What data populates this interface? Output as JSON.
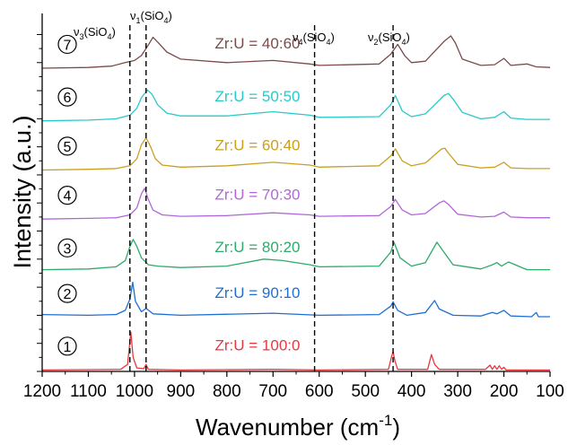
{
  "chart_data": {
    "type": "line",
    "title": "",
    "xlabel": "Wavenumber (cm-1)",
    "xlabel_main": "Wavenumber (cm",
    "xlabel_sup": "-1",
    "xlabel_close": ")",
    "ylabel": "Intensity (a.u.)",
    "xlim": [
      1200,
      100
    ],
    "x_reversed": true,
    "xticks": [
      1200,
      1100,
      1000,
      900,
      800,
      700,
      600,
      500,
      400,
      300,
      200,
      100
    ],
    "y_ticks_labeled": false,
    "grid": false,
    "legend": "none",
    "reference_lines": [
      {
        "x": 1010,
        "label_base": "ν",
        "label_sub": "3",
        "label_tail": "(SiO",
        "label_sub2": "4",
        "label_end": ")"
      },
      {
        "x": 975,
        "label_base": "ν",
        "label_sub": "1",
        "label_tail": "(SiO",
        "label_sub2": "4",
        "label_end": ")"
      },
      {
        "x": 610,
        "label_base": "ν",
        "label_sub": "4",
        "label_tail": "(SiO",
        "label_sub2": "4",
        "label_end": ")"
      },
      {
        "x": 440,
        "label_base": "ν",
        "label_sub": "2",
        "label_tail": "(SiO",
        "label_sub2": "4",
        "label_end": ")"
      }
    ],
    "series": [
      {
        "marker": "1",
        "name": "Zr:U = 100:0",
        "color": "#e8373f",
        "offset": 0.0,
        "x": [
          1200,
          1030,
          1015,
          1008,
          1003,
          995,
          980,
          975,
          970,
          900,
          700,
          600,
          450,
          443,
          440,
          436,
          430,
          365,
          357,
          350,
          340,
          240,
          230,
          225,
          220,
          215,
          210,
          205,
          200,
          195,
          180,
          100
        ],
        "y": [
          0.2,
          0.3,
          1.0,
          5.6,
          2.0,
          0.5,
          0.4,
          1.0,
          0.3,
          0.2,
          0.3,
          0.2,
          0.3,
          2.2,
          2.8,
          1.5,
          0.3,
          0.3,
          2.4,
          1.0,
          0.3,
          0.3,
          0.9,
          0.3,
          0.8,
          0.3,
          0.8,
          0.3,
          0.6,
          0.2,
          0.2,
          0.2
        ]
      },
      {
        "marker": "2",
        "name": "Zr:U = 90:10",
        "color": "#1f6fd1",
        "offset": 7.5,
        "x": [
          1200,
          1100,
          1040,
          1020,
          1010,
          1004,
          998,
          985,
          975,
          960,
          900,
          700,
          600,
          470,
          445,
          440,
          430,
          410,
          370,
          350,
          340,
          310,
          250,
          225,
          215,
          200,
          185,
          140,
          130,
          125,
          100
        ],
        "y": [
          0.6,
          0.5,
          0.6,
          1.2,
          2.8,
          5.2,
          2.5,
          1.0,
          1.5,
          0.7,
          0.5,
          0.8,
          0.5,
          0.6,
          1.8,
          2.4,
          1.2,
          0.5,
          0.9,
          2.6,
          1.4,
          0.5,
          0.4,
          0.9,
          0.7,
          1.2,
          0.4,
          0.3,
          0.9,
          0.3,
          0.3
        ]
      },
      {
        "marker": "3",
        "name": "Zr:U = 80:20",
        "color": "#2eaa6a",
        "offset": 14.0,
        "x": [
          1200,
          1100,
          1040,
          1020,
          1010,
          1003,
          995,
          985,
          970,
          950,
          900,
          800,
          720,
          680,
          620,
          600,
          470,
          445,
          438,
          425,
          400,
          370,
          345,
          330,
          310,
          250,
          225,
          215,
          205,
          190,
          150,
          100
        ],
        "y": [
          0.5,
          0.6,
          0.9,
          1.8,
          3.8,
          4.8,
          3.8,
          2.2,
          1.2,
          1.0,
          0.8,
          1.0,
          2.0,
          1.8,
          1.2,
          0.9,
          1.0,
          3.0,
          4.4,
          2.2,
          1.0,
          1.5,
          4.4,
          3.0,
          1.2,
          0.6,
          1.2,
          1.5,
          1.0,
          1.6,
          0.5,
          0.5
        ]
      },
      {
        "marker": "4",
        "name": "Zr:U = 70:30",
        "color": "#b068d8",
        "offset": 21.5,
        "x": [
          1200,
          1100,
          1040,
          1010,
          995,
          985,
          978,
          970,
          960,
          940,
          900,
          800,
          700,
          620,
          600,
          470,
          445,
          435,
          420,
          400,
          370,
          340,
          330,
          320,
          300,
          250,
          220,
          200,
          185,
          150,
          100
        ],
        "y": [
          0.2,
          0.3,
          0.4,
          0.8,
          1.8,
          3.8,
          4.6,
          3.0,
          1.5,
          0.8,
          0.6,
          0.7,
          1.1,
          0.8,
          0.6,
          0.7,
          2.0,
          3.0,
          1.5,
          0.8,
          1.0,
          2.5,
          2.8,
          2.3,
          0.9,
          0.5,
          0.6,
          1.2,
          0.5,
          0.4,
          0.4
        ]
      },
      {
        "marker": "5",
        "name": "Zr:U = 60:40",
        "color": "#c9a020",
        "offset": 28.5,
        "x": [
          1200,
          1100,
          1040,
          1010,
          995,
          985,
          975,
          965,
          955,
          940,
          900,
          800,
          700,
          620,
          600,
          470,
          445,
          435,
          420,
          400,
          370,
          335,
          328,
          320,
          300,
          250,
          220,
          200,
          185,
          150,
          100
        ],
        "y": [
          0.2,
          0.3,
          0.4,
          0.8,
          1.8,
          3.8,
          4.8,
          3.5,
          1.8,
          0.9,
          0.6,
          0.8,
          1.3,
          0.9,
          0.6,
          0.8,
          2.2,
          3.2,
          1.5,
          0.8,
          1.2,
          3.2,
          3.3,
          2.6,
          1.0,
          0.5,
          0.6,
          1.3,
          0.5,
          0.4,
          0.4
        ]
      },
      {
        "marker": "6",
        "name": "Zr:U = 50:50",
        "color": "#29c9c9",
        "offset": 35.5,
        "x": [
          1200,
          1100,
          1040,
          1010,
          995,
          985,
          972,
          962,
          950,
          930,
          900,
          800,
          700,
          620,
          600,
          470,
          445,
          435,
          420,
          400,
          370,
          330,
          320,
          310,
          290,
          250,
          220,
          200,
          185,
          150,
          100
        ],
        "y": [
          0.2,
          0.3,
          0.5,
          1.0,
          2.0,
          3.5,
          4.6,
          4.0,
          2.5,
          1.3,
          0.9,
          0.9,
          1.5,
          1.0,
          0.7,
          0.8,
          2.5,
          3.8,
          1.6,
          0.8,
          1.2,
          3.8,
          4.1,
          3.3,
          1.4,
          0.5,
          0.7,
          1.5,
          0.6,
          0.4,
          0.4
        ]
      },
      {
        "marker": "7",
        "name": "Zr:U = 40:60",
        "color": "#7b4a4a",
        "offset": 43.0,
        "x": [
          1200,
          1100,
          1050,
          1020,
          1000,
          985,
          970,
          960,
          948,
          930,
          900,
          800,
          700,
          620,
          600,
          470,
          445,
          430,
          415,
          400,
          370,
          330,
          315,
          305,
          290,
          250,
          220,
          200,
          185,
          150,
          130,
          100
        ],
        "y": [
          0.2,
          0.3,
          0.5,
          1.0,
          1.3,
          2.0,
          3.5,
          4.6,
          3.8,
          2.5,
          1.5,
          1.0,
          1.3,
          0.8,
          0.6,
          0.8,
          2.2,
          3.6,
          2.0,
          1.0,
          1.2,
          4.0,
          4.8,
          3.8,
          1.5,
          0.6,
          0.7,
          1.6,
          0.6,
          0.8,
          0.4,
          0.3
        ]
      }
    ]
  }
}
